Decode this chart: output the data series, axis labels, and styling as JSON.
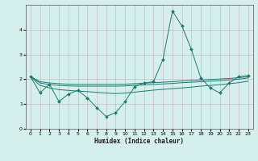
{
  "xlabel": "Humidex (Indice chaleur)",
  "bg_color": "#d5f0ec",
  "grid_color": "#c8b8cc",
  "line_color": "#1a7a6e",
  "xlim": [
    -0.5,
    23.5
  ],
  "ylim": [
    0,
    5
  ],
  "yticks": [
    0,
    1,
    2,
    3,
    4
  ],
  "xticks": [
    0,
    1,
    2,
    3,
    4,
    5,
    6,
    7,
    8,
    9,
    10,
    11,
    12,
    13,
    14,
    15,
    16,
    17,
    18,
    19,
    20,
    21,
    22,
    23
  ],
  "series1_x": [
    0,
    1,
    2,
    3,
    4,
    5,
    6,
    7,
    8,
    9,
    10,
    11,
    12,
    13,
    14,
    15,
    16,
    17,
    18,
    19,
    20,
    21,
    22,
    23
  ],
  "series1_y": [
    2.1,
    1.45,
    1.8,
    1.1,
    1.4,
    1.55,
    1.25,
    0.85,
    0.5,
    0.65,
    1.1,
    1.7,
    1.85,
    1.9,
    2.8,
    4.75,
    4.15,
    3.2,
    2.05,
    1.65,
    1.45,
    1.85,
    2.1,
    2.15
  ],
  "series2_x": [
    0,
    1,
    2,
    3,
    4,
    5,
    6,
    7,
    8,
    9,
    10,
    11,
    12,
    13,
    14,
    15,
    16,
    17,
    18,
    19,
    20,
    21,
    22,
    23
  ],
  "series2_y": [
    2.1,
    1.9,
    1.85,
    1.82,
    1.8,
    1.79,
    1.79,
    1.79,
    1.79,
    1.79,
    1.8,
    1.82,
    1.84,
    1.86,
    1.88,
    1.9,
    1.93,
    1.95,
    1.97,
    1.99,
    2.01,
    2.03,
    2.06,
    2.1
  ],
  "series3_x": [
    0,
    1,
    2,
    3,
    4,
    5,
    6,
    7,
    8,
    9,
    10,
    11,
    12,
    13,
    14,
    15,
    16,
    17,
    18,
    19,
    20,
    21,
    22,
    23
  ],
  "series3_y": [
    2.1,
    1.85,
    1.78,
    1.75,
    1.73,
    1.72,
    1.72,
    1.72,
    1.72,
    1.72,
    1.73,
    1.75,
    1.77,
    1.79,
    1.81,
    1.83,
    1.86,
    1.88,
    1.9,
    1.92,
    1.94,
    1.97,
    2.0,
    2.05
  ],
  "series4_x": [
    0,
    1,
    2,
    3,
    4,
    5,
    6,
    7,
    8,
    9,
    10,
    11,
    12,
    13,
    14,
    15,
    16,
    17,
    18,
    19,
    20,
    21,
    22,
    23
  ],
  "series4_y": [
    2.1,
    1.75,
    1.65,
    1.58,
    1.55,
    1.52,
    1.5,
    1.47,
    1.44,
    1.42,
    1.44,
    1.48,
    1.52,
    1.56,
    1.59,
    1.62,
    1.65,
    1.68,
    1.72,
    1.75,
    1.78,
    1.82,
    1.86,
    1.92
  ]
}
